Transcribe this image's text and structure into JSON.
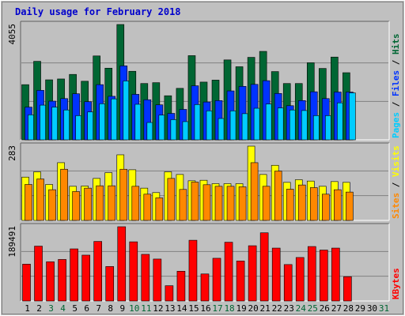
{
  "colors": {
    "background": "#c0c0c0",
    "title": "#0000cc",
    "hits": "#006633",
    "files": "#0033ff",
    "pages": "#00ccff",
    "visits": "#ffff00",
    "sites": "#ff8800",
    "kbytes": "#ff0000",
    "weekend_label": "#006633",
    "day_label": "#000000"
  },
  "chart_data": {
    "type": "bar",
    "title": "Daily usage for February 2018",
    "days_in_month": 31,
    "x": [
      "1",
      "2",
      "3",
      "4",
      "5",
      "6",
      "7",
      "8",
      "9",
      "10",
      "11",
      "12",
      "13",
      "14",
      "15",
      "16",
      "17",
      "18",
      "19",
      "20",
      "21",
      "22",
      "23",
      "24",
      "25",
      "26",
      "27",
      "28",
      "29",
      "30",
      "31"
    ],
    "weekend_days": [
      "3",
      "4",
      "10",
      "11",
      "17",
      "18",
      "24",
      "25",
      "31"
    ],
    "panels": [
      {
        "name": "hits-files-pages",
        "ymax_label": "4055",
        "ymax": 4055,
        "labels": [
          "Pages",
          "Files",
          "Hits"
        ],
        "series": [
          {
            "name": "Hits",
            "values": [
              1940,
              2760,
              2110,
              2140,
              2300,
              2060,
              2950,
              2520,
              4055,
              2410,
              1980,
              2010,
              1550,
              1810,
              2960,
              2030,
              2100,
              2810,
              2570,
              2900,
              3110,
              2400,
              1980,
              1980,
              2710,
              2510,
              2910,
              2360,
              0,
              0,
              0
            ]
          },
          {
            "name": "Files",
            "values": [
              1150,
              1740,
              1360,
              1450,
              1620,
              1340,
              1940,
              1530,
              2600,
              1600,
              1410,
              1230,
              930,
              1070,
              1900,
              1330,
              1380,
              1720,
              1880,
              1950,
              2080,
              1630,
              1200,
              1380,
              1690,
              1450,
              1680,
              1680,
              0,
              0,
              0
            ]
          },
          {
            "name": "Pages",
            "values": [
              880,
              1220,
              1150,
              1050,
              850,
              980,
              1270,
              1440,
              2070,
              1250,
              610,
              870,
              710,
              640,
              1240,
              1020,
              750,
              1020,
              920,
              1110,
              1260,
              1120,
              1050,
              1030,
              850,
              850,
              1300,
              1650,
              0,
              0,
              0
            ]
          }
        ]
      },
      {
        "name": "visits-sites",
        "ymax_label": "283",
        "ymax": 283,
        "labels": [
          "Sites",
          "Visits"
        ],
        "series": [
          {
            "name": "Visits",
            "values": [
              165,
              185,
              137,
              220,
              130,
              131,
              160,
              182,
              250,
              193,
              123,
              106,
              185,
              175,
              151,
              153,
              140,
              140,
              140,
              283,
              175,
              210,
              145,
              155,
              150,
              130,
              148,
              145,
              0,
              0,
              0
            ]
          },
          {
            "name": "Sites",
            "values": [
              137,
              158,
              117,
              195,
              110,
              123,
              132,
              132,
              195,
              130,
              100,
              86,
              160,
              118,
              146,
              136,
              130,
              130,
              128,
              220,
              130,
              188,
              119,
              135,
              125,
              100,
              117,
              108,
              0,
              0,
              0
            ]
          }
        ]
      },
      {
        "name": "kbytes",
        "ymax_label": "189491",
        "ymax": 189491,
        "labels": [
          "KBytes"
        ],
        "series": [
          {
            "name": "KBytes",
            "values": [
              94000,
              140000,
              100000,
              106000,
              133000,
              117000,
              152000,
              88000,
              189491,
              151000,
              119000,
              107000,
              39000,
              76000,
              155000,
              69000,
              109000,
              150000,
              102000,
              141000,
              174000,
              135000,
              93000,
              111000,
              139000,
              130000,
              135000,
              62000,
              0,
              0,
              0
            ]
          }
        ]
      }
    ]
  }
}
